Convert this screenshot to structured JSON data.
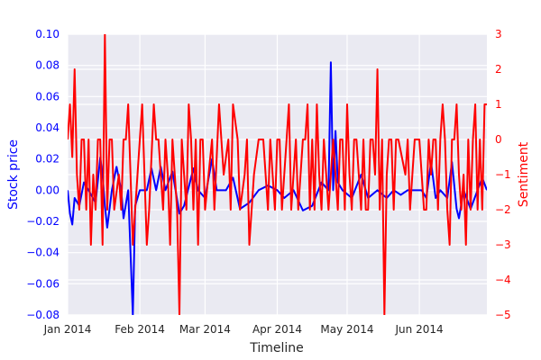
{
  "chart_data": {
    "type": "line",
    "title": "",
    "xlabel": "Timeline",
    "ylabel_left": "Stock price",
    "ylabel_right": "Sentiment",
    "x_range": [
      "2014-01-01",
      "2014-06-30"
    ],
    "x_ticks": [
      {
        "date": "2014-01-01",
        "label": "Jan 2014"
      },
      {
        "date": "2014-02-01",
        "label": "Feb 2014"
      },
      {
        "date": "2014-03-01",
        "label": "Mar 2014"
      },
      {
        "date": "2014-04-01",
        "label": "Apr 2014"
      },
      {
        "date": "2014-05-01",
        "label": "May 2014"
      },
      {
        "date": "2014-06-01",
        "label": "Jun 2014"
      }
    ],
    "ylim_left": [
      -0.08,
      0.1
    ],
    "yticks_left": [
      "0.10",
      "0.08",
      "0.06",
      "0.04",
      "0.02",
      "0.00",
      "−0.02",
      "−0.04",
      "−0.06",
      "−0.08"
    ],
    "ylim_right": [
      -5,
      3
    ],
    "yticks_right": [
      "3",
      "2",
      "1",
      "0",
      "−1",
      "−2",
      "−3",
      "−4",
      "−5"
    ],
    "grid": true,
    "series": [
      {
        "axis": "left",
        "color": "#0000ff",
        "points": [
          [
            "2014-01-01",
            0.0
          ],
          [
            "2014-01-02",
            -0.015
          ],
          [
            "2014-01-03",
            -0.022
          ],
          [
            "2014-01-04",
            -0.005
          ],
          [
            "2014-01-06",
            -0.01
          ],
          [
            "2014-01-08",
            0.005
          ],
          [
            "2014-01-10",
            0.0
          ],
          [
            "2014-01-13",
            -0.008
          ],
          [
            "2014-01-15",
            0.021
          ],
          [
            "2014-01-16",
            0.01
          ],
          [
            "2014-01-17",
            -0.01
          ],
          [
            "2014-01-18",
            -0.024
          ],
          [
            "2014-01-20",
            0.0
          ],
          [
            "2014-01-22",
            0.015
          ],
          [
            "2014-01-24",
            0.0
          ],
          [
            "2014-01-25",
            -0.018
          ],
          [
            "2014-01-27",
            0.0
          ],
          [
            "2014-01-29",
            -0.08
          ],
          [
            "2014-01-30",
            -0.01
          ],
          [
            "2014-02-01",
            0.0
          ],
          [
            "2014-02-04",
            0.0
          ],
          [
            "2014-02-06",
            0.014
          ],
          [
            "2014-02-08",
            0.0
          ],
          [
            "2014-02-10",
            0.015
          ],
          [
            "2014-02-12",
            0.0
          ],
          [
            "2014-02-15",
            0.012
          ],
          [
            "2014-02-18",
            -0.015
          ],
          [
            "2014-02-20",
            -0.01
          ],
          [
            "2014-02-24",
            0.014
          ],
          [
            "2014-02-26",
            0.0
          ],
          [
            "2014-03-01",
            -0.005
          ],
          [
            "2014-03-04",
            0.02
          ],
          [
            "2014-03-06",
            0.0
          ],
          [
            "2014-03-10",
            0.0
          ],
          [
            "2014-03-13",
            0.008
          ],
          [
            "2014-03-16",
            -0.012
          ],
          [
            "2014-03-20",
            -0.008
          ],
          [
            "2014-03-24",
            0.0
          ],
          [
            "2014-03-28",
            0.003
          ],
          [
            "2014-04-01",
            0.0
          ],
          [
            "2014-04-04",
            -0.005
          ],
          [
            "2014-04-08",
            0.0
          ],
          [
            "2014-04-12",
            -0.013
          ],
          [
            "2014-04-16",
            -0.01
          ],
          [
            "2014-04-20",
            0.005
          ],
          [
            "2014-04-23",
            0.0
          ],
          [
            "2014-04-24",
            0.082
          ],
          [
            "2014-04-25",
            0.0
          ],
          [
            "2014-04-26",
            0.038
          ],
          [
            "2014-04-27",
            0.005
          ],
          [
            "2014-04-29",
            0.0
          ],
          [
            "2014-05-03",
            -0.005
          ],
          [
            "2014-05-07",
            0.01
          ],
          [
            "2014-05-10",
            -0.005
          ],
          [
            "2014-05-14",
            0.0
          ],
          [
            "2014-05-18",
            -0.005
          ],
          [
            "2014-05-21",
            0.0
          ],
          [
            "2014-05-24",
            -0.003
          ],
          [
            "2014-05-27",
            0.0
          ],
          [
            "2014-05-30",
            0.0
          ],
          [
            "2014-06-02",
            0.0
          ],
          [
            "2014-06-04",
            -0.005
          ],
          [
            "2014-06-06",
            0.018
          ],
          [
            "2014-06-08",
            -0.005
          ],
          [
            "2014-06-10",
            0.0
          ],
          [
            "2014-06-13",
            -0.005
          ],
          [
            "2014-06-15",
            0.018
          ],
          [
            "2014-06-17",
            -0.012
          ],
          [
            "2014-06-18",
            -0.018
          ],
          [
            "2014-06-20",
            0.0
          ],
          [
            "2014-06-23",
            -0.012
          ],
          [
            "2014-06-26",
            0.0
          ],
          [
            "2014-06-28",
            0.008
          ],
          [
            "2014-06-30",
            0.0
          ]
        ]
      },
      {
        "axis": "right",
        "color": "#ff0000",
        "points": [
          [
            "2014-01-01",
            0.0
          ],
          [
            "2014-01-02",
            1.0
          ],
          [
            "2014-01-03",
            -0.5
          ],
          [
            "2014-01-04",
            2.0
          ],
          [
            "2014-01-05",
            -1.0
          ],
          [
            "2014-01-06",
            -2.0
          ],
          [
            "2014-01-07",
            0.0
          ],
          [
            "2014-01-08",
            0.0
          ],
          [
            "2014-01-09",
            -2.0
          ],
          [
            "2014-01-10",
            0.0
          ],
          [
            "2014-01-11",
            -3.0
          ],
          [
            "2014-01-12",
            -1.0
          ],
          [
            "2014-01-13",
            -2.0
          ],
          [
            "2014-01-14",
            0.0
          ],
          [
            "2014-01-15",
            0.0
          ],
          [
            "2014-01-16",
            -3.0
          ],
          [
            "2014-01-17",
            3.0
          ],
          [
            "2014-01-18",
            -2.0
          ],
          [
            "2014-01-19",
            0.0
          ],
          [
            "2014-01-20",
            0.0
          ],
          [
            "2014-01-21",
            -2.0
          ],
          [
            "2014-01-23",
            -1.0
          ],
          [
            "2014-01-24",
            -2.0
          ],
          [
            "2014-01-25",
            0.0
          ],
          [
            "2014-01-26",
            0.0
          ],
          [
            "2014-01-27",
            1.0
          ],
          [
            "2014-01-28",
            -1.0
          ],
          [
            "2014-01-29",
            -3.0
          ],
          [
            "2014-01-31",
            -1.0
          ],
          [
            "2014-02-01",
            0.0
          ],
          [
            "2014-02-02",
            1.0
          ],
          [
            "2014-02-03",
            -1.0
          ],
          [
            "2014-02-04",
            -3.0
          ],
          [
            "2014-02-05",
            -2.0
          ],
          [
            "2014-02-07",
            1.0
          ],
          [
            "2014-02-08",
            0.0
          ],
          [
            "2014-02-09",
            0.0
          ],
          [
            "2014-02-10",
            -1.0
          ],
          [
            "2014-02-11",
            -2.0
          ],
          [
            "2014-02-12",
            0.0
          ],
          [
            "2014-02-13",
            -1.0
          ],
          [
            "2014-02-14",
            -3.0
          ],
          [
            "2014-02-15",
            0.0
          ],
          [
            "2014-02-16",
            -1.0
          ],
          [
            "2014-02-17",
            -2.0
          ],
          [
            "2014-02-18",
            -5.0
          ],
          [
            "2014-02-19",
            0.0
          ],
          [
            "2014-02-20",
            -1.0
          ],
          [
            "2014-02-21",
            -2.0
          ],
          [
            "2014-02-22",
            1.0
          ],
          [
            "2014-02-23",
            0.0
          ],
          [
            "2014-02-24",
            -2.0
          ],
          [
            "2014-02-25",
            0.0
          ],
          [
            "2014-02-26",
            -3.0
          ],
          [
            "2014-02-27",
            0.0
          ],
          [
            "2014-02-28",
            0.0
          ],
          [
            "2014-03-01",
            -2.0
          ],
          [
            "2014-03-04",
            0.0
          ],
          [
            "2014-03-05",
            -2.0
          ],
          [
            "2014-03-07",
            1.0
          ],
          [
            "2014-03-09",
            -1.0
          ],
          [
            "2014-03-11",
            0.0
          ],
          [
            "2014-03-12",
            -2.0
          ],
          [
            "2014-03-13",
            1.0
          ],
          [
            "2014-03-15",
            0.0
          ],
          [
            "2014-03-16",
            -2.0
          ],
          [
            "2014-03-18",
            -1.0
          ],
          [
            "2014-03-19",
            0.0
          ],
          [
            "2014-03-20",
            -3.0
          ],
          [
            "2014-03-22",
            -1.0
          ],
          [
            "2014-03-24",
            0.0
          ],
          [
            "2014-03-26",
            0.0
          ],
          [
            "2014-03-28",
            -2.0
          ],
          [
            "2014-03-29",
            0.0
          ],
          [
            "2014-03-31",
            -2.0
          ],
          [
            "2014-04-01",
            0.0
          ],
          [
            "2014-04-02",
            0.0
          ],
          [
            "2014-04-03",
            -2.0
          ],
          [
            "2014-04-06",
            1.0
          ],
          [
            "2014-04-07",
            -2.0
          ],
          [
            "2014-04-09",
            0.0
          ],
          [
            "2014-04-10",
            -2.0
          ],
          [
            "2014-04-12",
            0.0
          ],
          [
            "2014-04-13",
            0.0
          ],
          [
            "2014-04-14",
            1.0
          ],
          [
            "2014-04-15",
            -2.0
          ],
          [
            "2014-04-16",
            0.0
          ],
          [
            "2014-04-17",
            -2.0
          ],
          [
            "2014-04-18",
            1.0
          ],
          [
            "2014-04-19",
            -1.0
          ],
          [
            "2014-04-20",
            -2.0
          ],
          [
            "2014-04-21",
            0.0
          ],
          [
            "2014-04-22",
            -1.0
          ],
          [
            "2014-04-23",
            -2.0
          ],
          [
            "2014-04-24",
            -1.0
          ],
          [
            "2014-04-25",
            0.0
          ],
          [
            "2014-04-26",
            -1.0
          ],
          [
            "2014-04-27",
            -2.0
          ],
          [
            "2014-04-28",
            0.0
          ],
          [
            "2014-04-29",
            0.0
          ],
          [
            "2014-04-30",
            -2.0
          ],
          [
            "2014-05-01",
            1.0
          ],
          [
            "2014-05-02",
            -1.0
          ],
          [
            "2014-05-03",
            -2.0
          ],
          [
            "2014-05-04",
            0.0
          ],
          [
            "2014-05-05",
            0.0
          ],
          [
            "2014-05-07",
            -2.0
          ],
          [
            "2014-05-08",
            0.0
          ],
          [
            "2014-05-09",
            -2.0
          ],
          [
            "2014-05-10",
            -2.0
          ],
          [
            "2014-05-11",
            0.0
          ],
          [
            "2014-05-12",
            0.0
          ],
          [
            "2014-05-13",
            -1.0
          ],
          [
            "2014-05-14",
            2.0
          ],
          [
            "2014-05-15",
            -2.0
          ],
          [
            "2014-05-16",
            0.0
          ],
          [
            "2014-05-17",
            -5.0
          ],
          [
            "2014-05-18",
            -1.0
          ],
          [
            "2014-05-19",
            0.0
          ],
          [
            "2014-05-20",
            0.0
          ],
          [
            "2014-05-21",
            -2.0
          ],
          [
            "2014-05-22",
            0.0
          ],
          [
            "2014-05-23",
            0.0
          ],
          [
            "2014-05-26",
            -1.0
          ],
          [
            "2014-05-27",
            0.0
          ],
          [
            "2014-05-28",
            -2.0
          ],
          [
            "2014-05-30",
            0.0
          ],
          [
            "2014-06-01",
            0.0
          ],
          [
            "2014-06-03",
            -2.0
          ],
          [
            "2014-06-04",
            -2.0
          ],
          [
            "2014-06-05",
            0.0
          ],
          [
            "2014-06-06",
            -1.0
          ],
          [
            "2014-06-07",
            0.0
          ],
          [
            "2014-06-08",
            0.0
          ],
          [
            "2014-06-09",
            -2.0
          ],
          [
            "2014-06-10",
            0.0
          ],
          [
            "2014-06-11",
            1.0
          ],
          [
            "2014-06-12",
            0.0
          ],
          [
            "2014-06-13",
            -2.0
          ],
          [
            "2014-06-14",
            -3.0
          ],
          [
            "2014-06-15",
            0.0
          ],
          [
            "2014-06-16",
            0.0
          ],
          [
            "2014-06-17",
            1.0
          ],
          [
            "2014-06-18",
            -1.0
          ],
          [
            "2014-06-19",
            -2.0
          ],
          [
            "2014-06-20",
            -1.0
          ],
          [
            "2014-06-21",
            -3.0
          ],
          [
            "2014-06-22",
            0.0
          ],
          [
            "2014-06-23",
            -2.0
          ],
          [
            "2014-06-24",
            0.0
          ],
          [
            "2014-06-25",
            1.0
          ],
          [
            "2014-06-26",
            -2.0
          ],
          [
            "2014-06-27",
            0.0
          ],
          [
            "2014-06-28",
            -2.0
          ],
          [
            "2014-06-29",
            1.0
          ],
          [
            "2014-06-30",
            1.0
          ]
        ]
      }
    ]
  }
}
